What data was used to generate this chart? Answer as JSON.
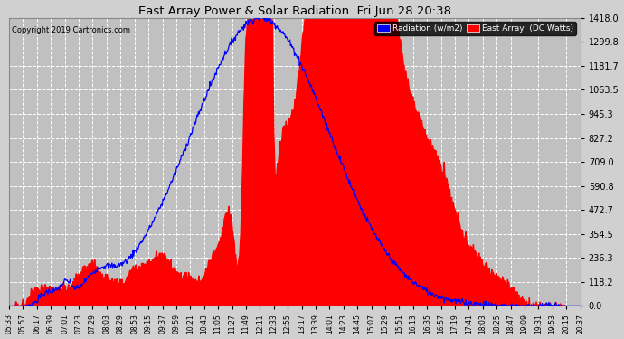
{
  "title": "East Array Power & Solar Radiation  Fri Jun 28 20:38",
  "copyright": "Copyright 2019 Cartronics.com",
  "legend_labels": [
    "Radiation (w/m2)",
    "East Array  (DC Watts)"
  ],
  "y_ticks": [
    0.0,
    118.2,
    236.3,
    354.5,
    472.7,
    590.8,
    709.0,
    827.2,
    945.3,
    1063.5,
    1181.7,
    1299.8,
    1418.0
  ],
  "y_max": 1418.0,
  "y_min": 0.0,
  "bg_color": "#d0d0d0",
  "plot_bg_color": "#c0c0c0",
  "grid_color": "white",
  "red_color": "#ff0000",
  "blue_color": "#0000ff",
  "x_labels": [
    "05:33",
    "05:57",
    "06:17",
    "06:39",
    "07:01",
    "07:23",
    "07:29",
    "08:03",
    "08:29",
    "08:53",
    "09:15",
    "09:37",
    "09:59",
    "10:21",
    "10:43",
    "11:05",
    "11:27",
    "11:49",
    "12:11",
    "12:33",
    "12:55",
    "13:17",
    "13:39",
    "14:01",
    "14:23",
    "14:45",
    "15:07",
    "15:29",
    "15:51",
    "16:13",
    "16:35",
    "16:57",
    "17:19",
    "17:41",
    "18:03",
    "18:25",
    "18:47",
    "19:09",
    "19:31",
    "19:53",
    "20:15",
    "20:37"
  ],
  "n_points": 900
}
